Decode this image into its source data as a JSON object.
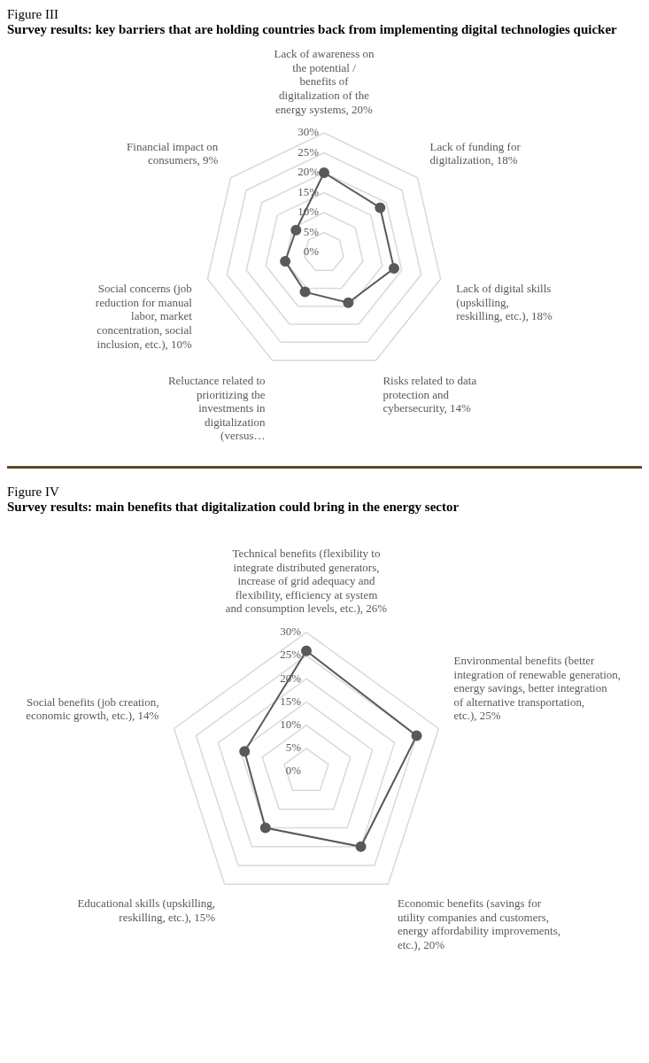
{
  "chart_data": [
    {
      "type": "radar",
      "title": "Figure III",
      "subtitle": "Survey results: key barriers that are holding countries back from implementing digital technologies quicker",
      "categories": [
        "Lack of awareness on the potential / benefits of digitalization of the energy systems, 20%",
        "Lack of funding for digitalization, 18%",
        "Lack of digital skills (upskilling, reskilling, etc.), 18%",
        "Risks related to data protection and cybersecurity, 14%",
        "Reluctance related to prioritizing the investments in digitalization (versus…",
        "Social concerns (job reduction for manual labor, market concentration, social inclusion, etc.), 10%",
        "Financial impact on consumers, 9%"
      ],
      "series": [
        {
          "color": "#595959",
          "values": [
            20,
            18,
            18,
            14,
            11,
            10,
            9
          ]
        }
      ],
      "ylim": [
        0,
        30
      ],
      "yticks": [
        {
          "value": 0,
          "label": "0%"
        },
        {
          "value": 5,
          "label": "5%"
        },
        {
          "value": 10,
          "label": "10%"
        },
        {
          "value": 15,
          "label": "15%"
        },
        {
          "value": 20,
          "label": "20%"
        },
        {
          "value": 25,
          "label": "25%"
        },
        {
          "value": 30,
          "label": "30%"
        }
      ],
      "grid": true,
      "marker": "circle"
    },
    {
      "type": "radar",
      "title": "Figure IV",
      "subtitle": "Survey results: main benefits that digitalization could bring in the energy sector",
      "categories": [
        "Technical benefits (flexibility to integrate distributed generators, increase of grid adequacy and flexibility, efficiency at system and consumption levels, etc.), 26%",
        "Environmental benefits (better integration of renewable generation, energy savings, better integration of alternative transportation, etc.), 25%",
        "Economic benefits (savings for utility companies and customers, energy affordability improvements, etc.), 20%",
        "Educational skills (upskilling, reskilling, etc.), 15%",
        "Social benefits (job creation, economic growth, etc.), 14%"
      ],
      "series": [
        {
          "color": "#595959",
          "values": [
            26,
            25,
            20,
            15,
            14
          ]
        }
      ],
      "ylim": [
        0,
        30
      ],
      "yticks": [
        {
          "value": 0,
          "label": "0%"
        },
        {
          "value": 5,
          "label": "5%"
        },
        {
          "value": 10,
          "label": "10%"
        },
        {
          "value": 15,
          "label": "15%"
        },
        {
          "value": 20,
          "label": "20%"
        },
        {
          "value": 25,
          "label": "25%"
        },
        {
          "value": 30,
          "label": "30%"
        }
      ],
      "grid": true,
      "marker": "circle"
    }
  ]
}
